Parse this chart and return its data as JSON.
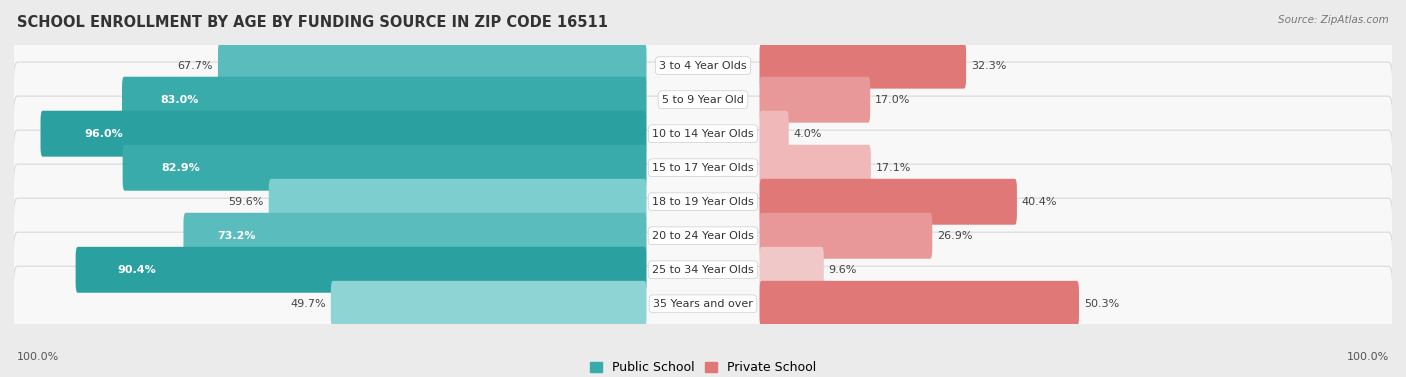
{
  "title": "SCHOOL ENROLLMENT BY AGE BY FUNDING SOURCE IN ZIP CODE 16511",
  "source": "Source: ZipAtlas.com",
  "categories": [
    "3 to 4 Year Olds",
    "5 to 9 Year Old",
    "10 to 14 Year Olds",
    "15 to 17 Year Olds",
    "18 to 19 Year Olds",
    "20 to 24 Year Olds",
    "25 to 34 Year Olds",
    "35 Years and over"
  ],
  "public_values": [
    67.7,
    83.0,
    96.0,
    82.9,
    59.6,
    73.2,
    90.4,
    49.7
  ],
  "private_values": [
    32.3,
    17.0,
    4.0,
    17.1,
    40.4,
    26.9,
    9.6,
    50.3
  ],
  "public_colors": [
    "#5abcbc",
    "#3aabab",
    "#2aa0a0",
    "#3aabab",
    "#7dcece",
    "#5abcbc",
    "#2aa0a0",
    "#8ed4d4"
  ],
  "private_colors": [
    "#e07878",
    "#e89898",
    "#f0b8b8",
    "#f0b8b8",
    "#e07878",
    "#e89898",
    "#f0c8c8",
    "#e07878"
  ],
  "bg_color": "#ebebeb",
  "row_bg_color": "#f8f8f8",
  "row_border_color": "#d8d8d8",
  "title_fontsize": 10.5,
  "label_fontsize": 8,
  "value_fontsize": 8,
  "legend_fontsize": 9,
  "axis_label_fontsize": 8,
  "public_label": "Public School",
  "private_label": "Private School",
  "public_legend_color": "#3aabab",
  "private_legend_color": "#e07878"
}
